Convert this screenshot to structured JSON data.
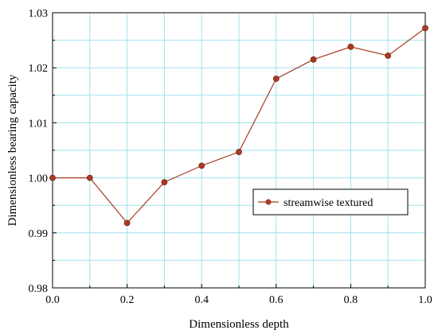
{
  "chart_data": {
    "type": "line",
    "xlabel": "Dimensionless depth",
    "ylabel": "Dimensionless bearing capacity",
    "xlim": [
      0.0,
      1.0
    ],
    "ylim": [
      0.98,
      1.03
    ],
    "x_ticks": [
      "0.0",
      "0.2",
      "0.4",
      "0.6",
      "0.8",
      "1.0"
    ],
    "y_ticks": [
      "0.98",
      "0.99",
      "1.00",
      "1.01",
      "1.02",
      "1.03"
    ],
    "grid": true,
    "legend_position": "right-middle",
    "series": [
      {
        "name": "streamwise textured",
        "color": "#a83a22",
        "x": [
          0.0,
          0.1,
          0.2,
          0.3,
          0.4,
          0.5,
          0.6,
          0.7,
          0.8,
          0.9,
          1.0
        ],
        "y": [
          1.0,
          1.0,
          0.9918,
          0.9992,
          1.0022,
          1.0047,
          1.018,
          1.0215,
          1.0238,
          1.0222,
          1.0272
        ]
      }
    ]
  }
}
